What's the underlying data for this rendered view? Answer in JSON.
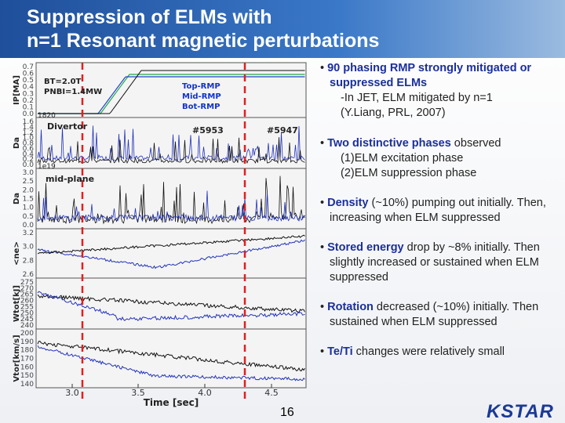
{
  "header": {
    "title_lines": [
      "Suppression of ELMs with",
      "n=1 Resonant magnetic perturbations"
    ]
  },
  "figure": {
    "panels": [
      {
        "ylabel": "IP[MA]",
        "yticks": [
          "0.7",
          "0.6",
          "0.5",
          "0.4",
          "0.3",
          "0.2",
          "0.1",
          "0.0"
        ]
      },
      {
        "ylabel": "Da",
        "yticks": [
          "1.6",
          "1.4",
          "1.2",
          "1.0",
          "0.8",
          "0.6",
          "0.4",
          "0.2",
          "0.0"
        ]
      },
      {
        "ylabel": "Da",
        "yticks": [
          "3.0",
          "2.5",
          "2.0",
          "1.5",
          "1.0",
          "0.5",
          "0.0"
        ]
      },
      {
        "ylabel": "<ne>",
        "yticks": [
          "3.2",
          "3.0",
          "2.8",
          "2.6"
        ]
      },
      {
        "ylabel": "Wtot[kJ]",
        "yticks": [
          "275",
          "270",
          "265",
          "260",
          "255",
          "250",
          "245",
          "240"
        ]
      },
      {
        "ylabel": "Vtor[km/s]",
        "yticks": [
          "200",
          "190",
          "180",
          "170",
          "160",
          "150",
          "140"
        ]
      }
    ],
    "xticks": [
      "3.0",
      "3.5",
      "4.0",
      "4.5"
    ],
    "xlabel": "Time [sec]",
    "annotations": {
      "bt": "BT=2.0T",
      "pnbi": "PNBI=1.4MW",
      "shot_small": "1820",
      "top": "Top-RMP",
      "mid": "Mid-RMP",
      "bot": "Bot-RMP",
      "divertor": "Divertor",
      "shot_a": "#5953",
      "shot_b": "#5947",
      "midplane": "mid-plane",
      "shot_small2": "1e19"
    }
  },
  "bullets": [
    {
      "lead": "90 phasing RMP strongly mitigated or suppressed ELMs",
      "rest": "",
      "sub": [
        "-In JET, ELM mitigated by n=1",
        "(Y.Liang, PRL, 2007)"
      ]
    },
    {
      "lead": "Two distinctive phases",
      "rest": " observed",
      "sub": [
        "(1)ELM excitation phase",
        "(2)ELM suppression phase"
      ]
    },
    {
      "lead": "Density",
      "rest": " (~10%) pumping out initially. Then, increasing when ELM suppressed",
      "sub": []
    },
    {
      "lead": "Stored energy",
      "rest": " drop by ~8% initially. Then slightly increased or sustained when ELM suppressed",
      "sub": []
    },
    {
      "lead": "Rotation",
      "rest": " decreased (~10%) initially. Then sustained when ELM suppressed",
      "sub": []
    },
    {
      "lead": "Te/Ti",
      "rest": " changes were relatively small",
      "sub": []
    }
  ],
  "footer": {
    "page": "16",
    "logo": "KSTAR"
  }
}
